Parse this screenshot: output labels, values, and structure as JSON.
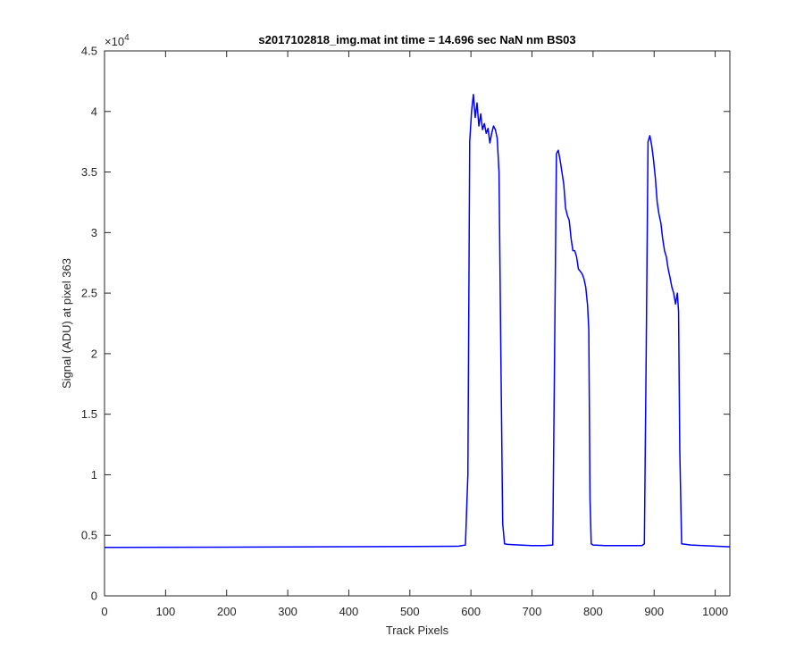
{
  "chart_data": {
    "type": "line",
    "title": "s2017102818_img.mat int time = 14.696 sec  NaN nm BS03",
    "xlabel": "Track Pixels",
    "ylabel": "Signal (ADU) at pixel 363",
    "xlim": [
      0,
      1024
    ],
    "ylim": [
      0,
      45000
    ],
    "y_exponent_label": "×10",
    "y_exponent_power": "4",
    "x_ticks": [
      0,
      100,
      200,
      300,
      400,
      500,
      600,
      700,
      800,
      900,
      1000
    ],
    "x_tick_labels": [
      "0",
      "100",
      "200",
      "300",
      "400",
      "500",
      "600",
      "700",
      "800",
      "900",
      "1000"
    ],
    "y_ticks": [
      0,
      5000,
      10000,
      15000,
      20000,
      25000,
      30000,
      35000,
      40000,
      45000
    ],
    "y_tick_labels": [
      "0",
      "0.5",
      "1",
      "1.5",
      "2",
      "2.5",
      "3",
      "3.5",
      "4",
      "4.5"
    ],
    "grid": false,
    "line_color": "#0000ff",
    "axes_color": "#262626",
    "series": [
      {
        "x": [
          0,
          100,
          200,
          300,
          400,
          500,
          580,
          591,
          595,
          598,
          601,
          604,
          607,
          610,
          613,
          616,
          619,
          622,
          625,
          628,
          631,
          634,
          637,
          640,
          643,
          646,
          649,
          652,
          655,
          660,
          680,
          700,
          720,
          734,
          737,
          740,
          743,
          746,
          749,
          752,
          755,
          758,
          761,
          764,
          767,
          770,
          773,
          776,
          779,
          782,
          785,
          788,
          791,
          793,
          795,
          797,
          800,
          820,
          860,
          880,
          884,
          887,
          890,
          893,
          896,
          899,
          902,
          905,
          908,
          911,
          914,
          917,
          920,
          923,
          926,
          929,
          932,
          935,
          938,
          940,
          942,
          945,
          960,
          1000,
          1024
        ],
        "y": [
          4000,
          4010,
          4020,
          4040,
          4060,
          4080,
          4100,
          4200,
          10000,
          37500,
          40000,
          41400,
          39500,
          40700,
          38800,
          39800,
          38500,
          39000,
          38200,
          38600,
          37400,
          38200,
          38800,
          38500,
          37800,
          35000,
          20000,
          6000,
          4300,
          4250,
          4200,
          4150,
          4150,
          4200,
          20000,
          36500,
          36800,
          36000,
          35000,
          34000,
          32000,
          31400,
          31000,
          29500,
          28500,
          28500,
          28000,
          27000,
          26800,
          26600,
          26200,
          25500,
          24000,
          22000,
          8000,
          4300,
          4200,
          4150,
          4150,
          4150,
          4300,
          20000,
          37500,
          38000,
          37200,
          36000,
          34500,
          32500,
          31500,
          30800,
          29500,
          28500,
          28000,
          27000,
          26300,
          25500,
          25000,
          24100,
          25000,
          23500,
          12000,
          4300,
          4200,
          4100,
          4050
        ]
      }
    ]
  }
}
